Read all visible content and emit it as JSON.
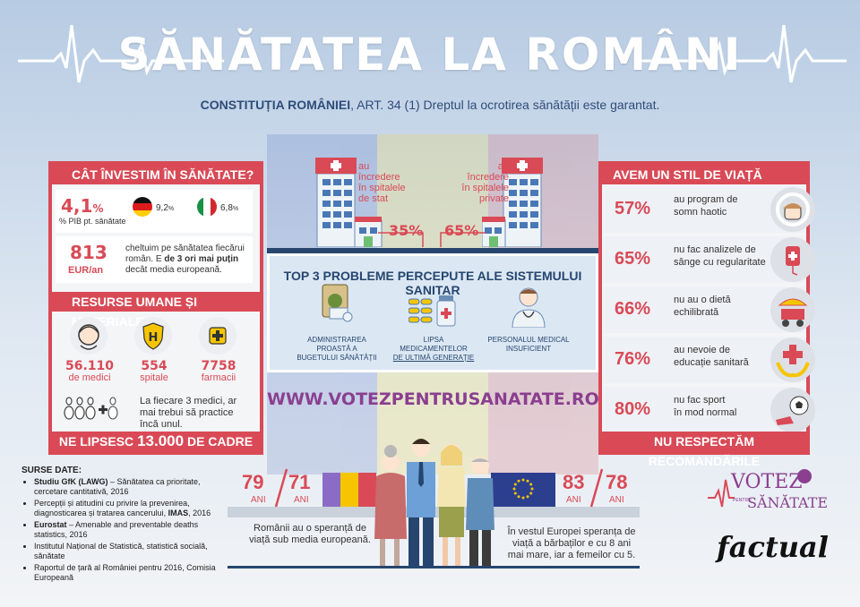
{
  "header": {
    "title": "SĂNĂTATEA LA ROMÂNI",
    "subtitle_bold": "CONSTITUȚIA ROMÂNIEI",
    "subtitle_rest": ", ART. 34 (1) Dreptul la ocrotirea sănătății este garantat."
  },
  "investment": {
    "heading": "CÂT ÎNVESTIM ÎN SĂNĂTATE?",
    "pib_value": "4,1",
    "pib_unit": "%",
    "pib_label": "% PIB pt. sănătate",
    "germany_value": "9,2",
    "germany_unit": "%",
    "italy_value": "6,8",
    "italy_unit": "%",
    "per_capita_value": "813",
    "per_capita_unit": "EUR/an",
    "per_capita_text": "cheltuim pe sănătatea fiecărui român. E ",
    "per_capita_bold": "de 3 ori mai puțin",
    "per_capita_tail": " decât media europeană."
  },
  "resources": {
    "heading": "RESURSE UMANE ȘI MATERIALE",
    "items": [
      {
        "value": "56.110",
        "label": "de medici"
      },
      {
        "value": "554",
        "label": "spitale"
      },
      {
        "value": "7758",
        "label": "farmacii"
      }
    ],
    "hospital_letter": "H",
    "note": "La fiecare 3 medici, ar mai trebui să practice încă unul.",
    "footer_prefix": "NE LIPSESC ",
    "footer_number": "13.000",
    "footer_suffix": " DE CADRE"
  },
  "hospitals": {
    "state_text": "au încredere în spitalele de stat",
    "state_pct": "35%",
    "private_text": "au încredere în spitalele private",
    "private_pct": "65%"
  },
  "problems": {
    "heading": "TOP 3 PROBLEME PERCEPUTE ALE SISTEMULUI SANITAR",
    "items": [
      {
        "label_a": "ADMINISTRAREA PROASTĂ A",
        "label_b": "BUGETULUI SĂNĂTĂȚII"
      },
      {
        "label_a": "LIPSA MEDICAMENTELOR",
        "label_b": "DE ULTIMĂ GENERAȚIE"
      },
      {
        "label_a": "PERSONALUL MEDICAL",
        "label_b": "INSUFICIENT"
      }
    ]
  },
  "website": {
    "part1": "WWW.VOTEZPENTRU",
    "part2": "SANATATE",
    "part3": ".RO"
  },
  "lifestyle": {
    "heading": "AVEM UN STIL DE VIAȚĂ SĂNĂTOS?",
    "items": [
      {
        "pct": "57%",
        "line1": "au program de",
        "line2": "somn haotic"
      },
      {
        "pct": "65%",
        "line1": "nu fac analizele de",
        "line2": "sânge cu regularitate"
      },
      {
        "pct": "66%",
        "line1": "nu au o dietă",
        "line2": "echilibrată"
      },
      {
        "pct": "76%",
        "line1": "au nevoie de",
        "line2": "educație sanitară"
      },
      {
        "pct": "80%",
        "line1": "nu fac sport",
        "line2": "în mod normal"
      }
    ],
    "footer": "NU RESPECTĂM RECOMANDĂRILE"
  },
  "sources": {
    "heading": "SURSE DATE",
    "items": [
      {
        "bold": "Studiu GfK (LAWG)",
        "text": " – Sănătatea ca prioritate, cercetare cantitativă, 2016"
      },
      {
        "bold": "",
        "text": "Percepții și atitudini cu privire la prevenirea, diagnosticarea și tratarea cancerului, ",
        "bold2": "IMAS",
        "tail": ", 2016"
      },
      {
        "bold": "Eurostat",
        "text": " – Amenable and preventable deaths statistics, 2016"
      },
      {
        "bold": "",
        "text": "Institutul Național de Statistică, statistică socială, sănătate"
      },
      {
        "bold": "",
        "text": "Raportul de țară al României pentru 2016, Comisia Europeană"
      }
    ]
  },
  "life_expectancy": {
    "ro_women": "79",
    "ro_men": "71",
    "eu_women": "83",
    "eu_men": "78",
    "unit": "ANI",
    "ro_text": "Românii au o speranță de viață sub media europeană.",
    "eu_text": "În vestul Europei speranța de viață a bărbaților e cu 8 ani mai mare, iar a femeilor cu 5."
  },
  "logos": {
    "votez_a": "VOTEZ",
    "votez_small": "PENTRU",
    "votez_b": "SĂNĂTATE",
    "factual": "factual"
  },
  "colors": {
    "accent_red": "#d94a56",
    "navy": "#26466f",
    "purple": "#8a3f8f"
  }
}
